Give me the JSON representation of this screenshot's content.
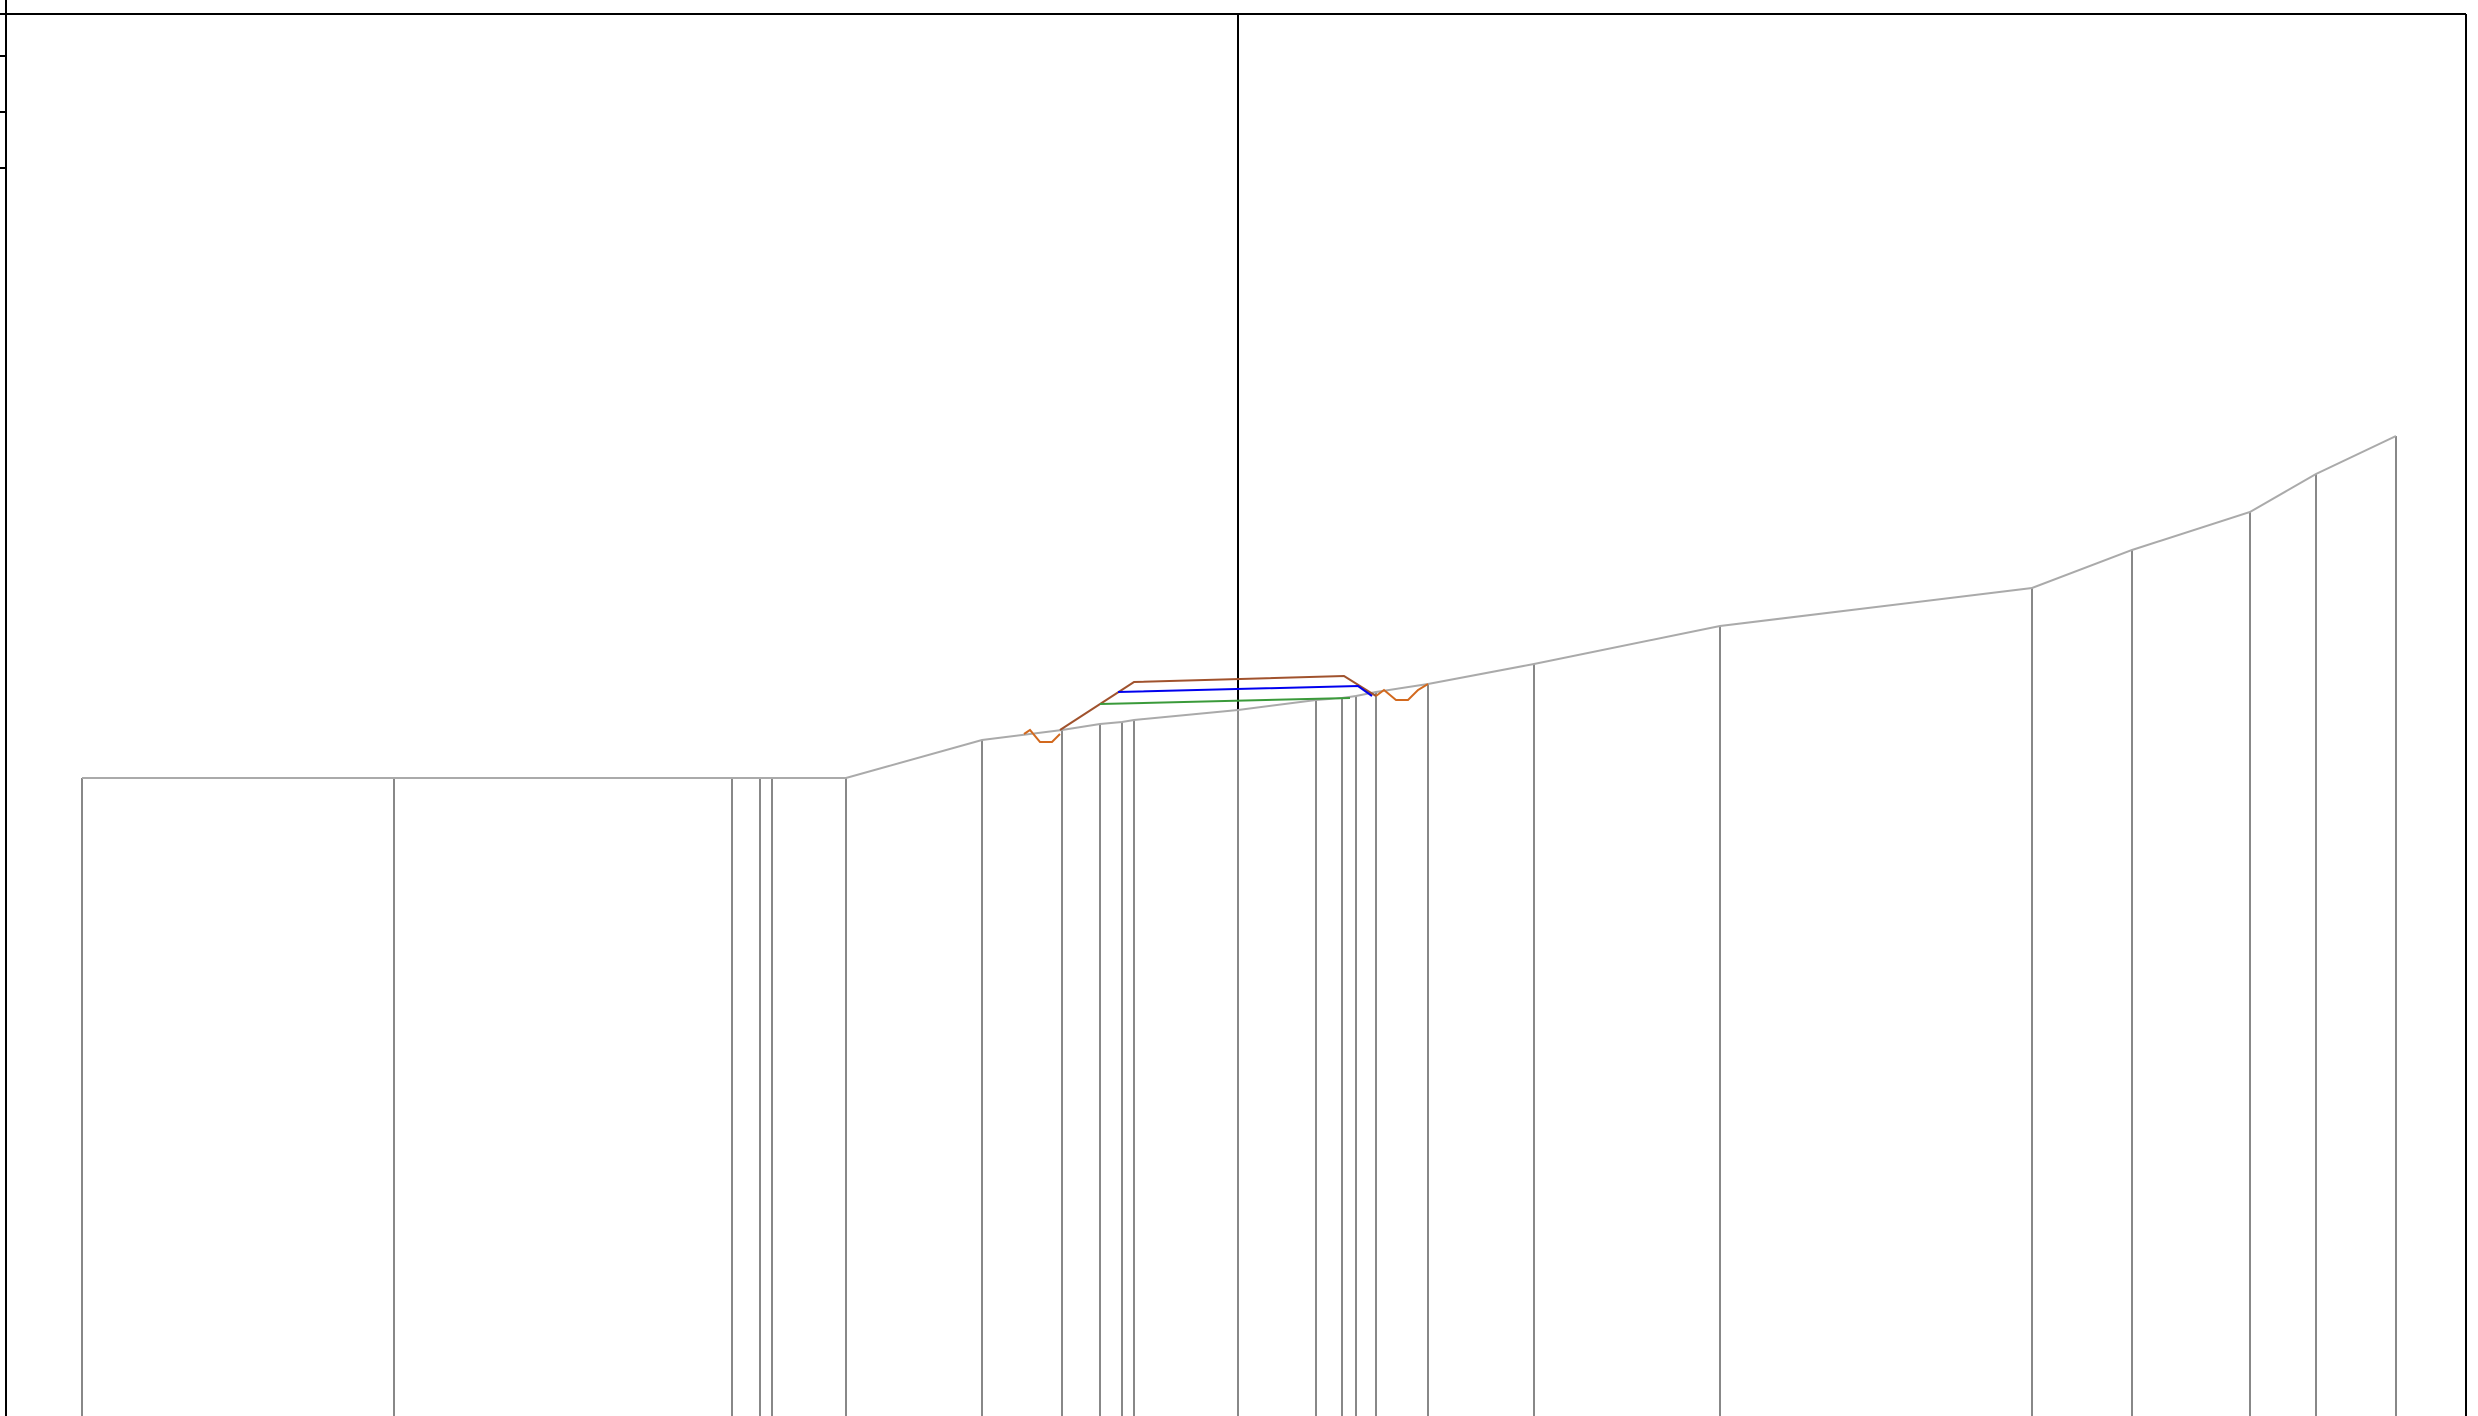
{
  "drawing": {
    "colors": {
      "background": "#ffffff",
      "frame": "#000000",
      "ground": "#aaaaaa",
      "station_line": "#888888",
      "centerline": "#000000",
      "design_top": "#a0522d",
      "design_blue": "#0000ee",
      "design_green": "#3a9a3a",
      "ditch": "#d2691e"
    },
    "ground_profile_count": 20,
    "stations_count": 25,
    "has_centerline": true,
    "has_design_section": true,
    "has_side_ditches": true
  }
}
